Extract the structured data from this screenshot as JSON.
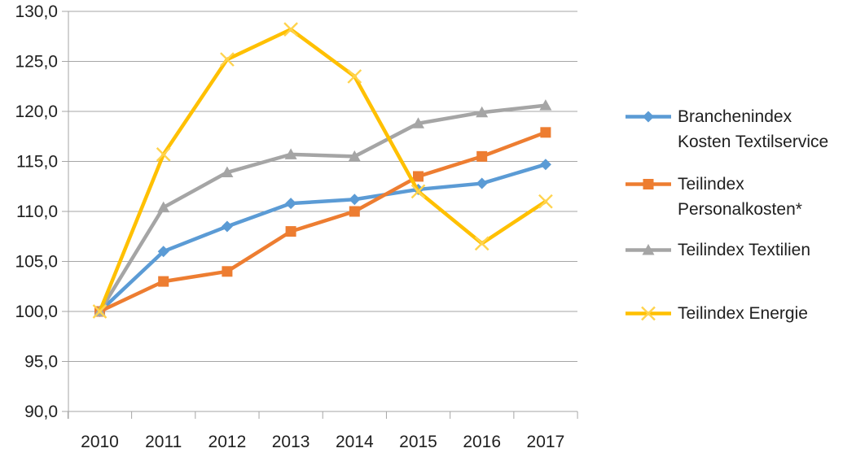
{
  "chart_data": {
    "type": "line",
    "title": "",
    "xlabel": "",
    "ylabel": "",
    "categories": [
      "2010",
      "2011",
      "2012",
      "2013",
      "2014",
      "2015",
      "2016",
      "2017"
    ],
    "series": [
      {
        "name": "Branchenindex Kosten Textilservice",
        "legend_label": "Branchenindex\nKosten Textilservice",
        "color": "#5B9BD5",
        "marker": "diamond",
        "values": [
          100.0,
          106.0,
          108.5,
          110.8,
          111.2,
          112.2,
          112.8,
          114.7
        ]
      },
      {
        "name": "Teilindex Personalkosten*",
        "legend_label": "Teilindex\nPersonalkosten*",
        "color": "#ED7D31",
        "marker": "square",
        "values": [
          100.0,
          103.0,
          104.0,
          108.0,
          110.0,
          113.5,
          115.5,
          117.9
        ]
      },
      {
        "name": "Teilindex Textilien",
        "legend_label": "Teilindex Textilien",
        "color": "#A5A5A5",
        "marker": "triangle",
        "values": [
          100.0,
          110.4,
          113.9,
          115.7,
          115.5,
          118.8,
          119.9,
          120.6
        ]
      },
      {
        "name": "Teilindex Energie",
        "legend_label": "Teilindex Energie",
        "color": "#FFC000",
        "marker": "x",
        "marker_color": "#FFD34D",
        "values": [
          100.0,
          115.7,
          125.2,
          128.2,
          123.5,
          112.0,
          106.8,
          111.0
        ]
      }
    ],
    "y_axis": {
      "min": 90,
      "max": 130,
      "step": 5,
      "tick_labels": [
        "90,0",
        "95,0",
        "100,0",
        "105,0",
        "110,0",
        "115,0",
        "120,0",
        "125,0",
        "130,0"
      ]
    },
    "grid": true,
    "legend_position": "right",
    "colors": {
      "axis": "#A6A6A6",
      "gridline": "#A6A6A6",
      "text": "#1f1f1f",
      "background": "#ffffff"
    }
  }
}
